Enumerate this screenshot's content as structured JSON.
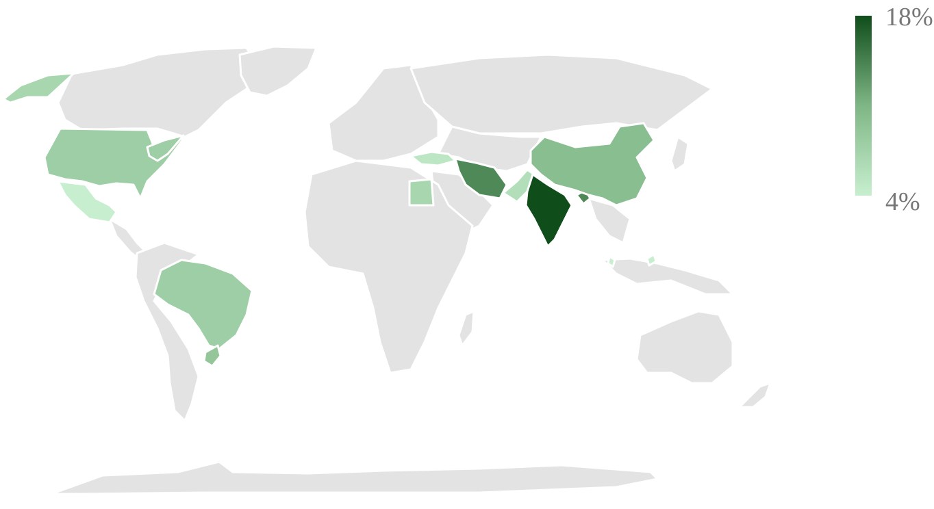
{
  "legend": {
    "max_label": "18%",
    "min_label": "4%",
    "min_value": 4,
    "max_value": 18,
    "color_low": "#c7efcf",
    "color_high": "#0f4d1a"
  },
  "base_land_color": "#e3e3e3",
  "border_color": "#ffffff",
  "highlighted_countries": [
    {
      "id": "india",
      "value": 18
    },
    {
      "id": "iran",
      "value": 14
    },
    {
      "id": "china",
      "value": 10
    },
    {
      "id": "bangladesh",
      "value": 14
    },
    {
      "id": "usa",
      "value": 8
    },
    {
      "id": "brazil",
      "value": 8
    },
    {
      "id": "uruguay",
      "value": 9
    },
    {
      "id": "alaska",
      "value": 7
    },
    {
      "id": "pakistan",
      "value": 6
    },
    {
      "id": "egypt",
      "value": 7
    },
    {
      "id": "turkey",
      "value": 5
    },
    {
      "id": "mexico",
      "value": 4
    },
    {
      "id": "malaysia",
      "value": 4
    },
    {
      "id": "ne-us",
      "value": 8
    }
  ]
}
